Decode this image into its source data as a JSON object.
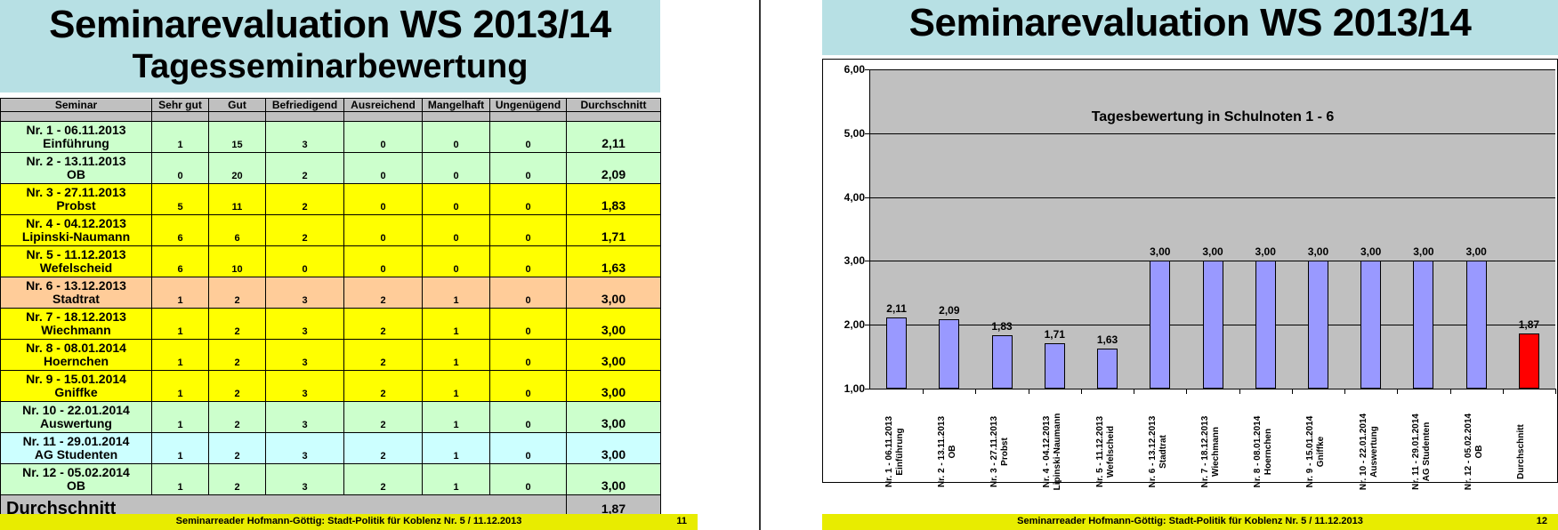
{
  "left_slide": {
    "title": "Seminarevaluation WS 2013/14",
    "subtitle": "Tagesseminarbewertung",
    "table": {
      "columns": [
        "Seminar",
        "Sehr gut",
        "Gut",
        "Befriedigend",
        "Ausreichend",
        "Mangelhaft",
        "Ungenügend",
        "Durchschnitt"
      ],
      "rows": [
        {
          "line1": "Nr. 1 - 06.11.2013",
          "line2": "Einführung",
          "sehr_gut": "1",
          "gut": "15",
          "befriedigend": "3",
          "ausreichend": "0",
          "mangelhaft": "0",
          "ungenuegend": "0",
          "durchschnitt": "2,11",
          "color": "#ccffcc"
        },
        {
          "line1": "Nr. 2 - 13.11.2013",
          "line2": "OB",
          "sehr_gut": "0",
          "gut": "20",
          "befriedigend": "2",
          "ausreichend": "0",
          "mangelhaft": "0",
          "ungenuegend": "0",
          "durchschnitt": "2,09",
          "color": "#ccffcc"
        },
        {
          "line1": "Nr. 3 - 27.11.2013",
          "line2": "Probst",
          "sehr_gut": "5",
          "gut": "11",
          "befriedigend": "2",
          "ausreichend": "0",
          "mangelhaft": "0",
          "ungenuegend": "0",
          "durchschnitt": "1,83",
          "color": "#ffff00"
        },
        {
          "line1": "Nr. 4 - 04.12.2013",
          "line2": "Lipinski-Naumann",
          "sehr_gut": "6",
          "gut": "6",
          "befriedigend": "2",
          "ausreichend": "0",
          "mangelhaft": "0",
          "ungenuegend": "0",
          "durchschnitt": "1,71",
          "color": "#ffff00"
        },
        {
          "line1": "Nr. 5 - 11.12.2013",
          "line2": "Wefelscheid",
          "sehr_gut": "6",
          "gut": "10",
          "befriedigend": "0",
          "ausreichend": "0",
          "mangelhaft": "0",
          "ungenuegend": "0",
          "durchschnitt": "1,63",
          "color": "#ffff00"
        },
        {
          "line1": "Nr. 6 - 13.12.2013",
          "line2": "Stadtrat",
          "sehr_gut": "1",
          "gut": "2",
          "befriedigend": "3",
          "ausreichend": "2",
          "mangelhaft": "1",
          "ungenuegend": "0",
          "durchschnitt": "3,00",
          "color": "#ffcc99"
        },
        {
          "line1": "Nr. 7 - 18.12.2013",
          "line2": "Wiechmann",
          "sehr_gut": "1",
          "gut": "2",
          "befriedigend": "3",
          "ausreichend": "2",
          "mangelhaft": "1",
          "ungenuegend": "0",
          "durchschnitt": "3,00",
          "color": "#ffff00"
        },
        {
          "line1": "Nr. 8 - 08.01.2014",
          "line2": "Hoernchen",
          "sehr_gut": "1",
          "gut": "2",
          "befriedigend": "3",
          "ausreichend": "2",
          "mangelhaft": "1",
          "ungenuegend": "0",
          "durchschnitt": "3,00",
          "color": "#ffff00"
        },
        {
          "line1": "Nr. 9 - 15.01.2014",
          "line2": "Gniffke",
          "sehr_gut": "1",
          "gut": "2",
          "befriedigend": "3",
          "ausreichend": "2",
          "mangelhaft": "1",
          "ungenuegend": "0",
          "durchschnitt": "3,00",
          "color": "#ffff00"
        },
        {
          "line1": "Nr. 10 - 22.01.2014",
          "line2": "Auswertung",
          "sehr_gut": "1",
          "gut": "2",
          "befriedigend": "3",
          "ausreichend": "2",
          "mangelhaft": "1",
          "ungenuegend": "0",
          "durchschnitt": "3,00",
          "color": "#ccffcc"
        },
        {
          "line1": "Nr. 11 - 29.01.2014",
          "line2": "AG Studenten",
          "sehr_gut": "1",
          "gut": "2",
          "befriedigend": "3",
          "ausreichend": "2",
          "mangelhaft": "1",
          "ungenuegend": "0",
          "durchschnitt": "3,00",
          "color": "#ccffff"
        },
        {
          "line1": "Nr. 12 - 05.02.2014",
          "line2": "OB",
          "sehr_gut": "1",
          "gut": "2",
          "befriedigend": "3",
          "ausreichend": "2",
          "mangelhaft": "1",
          "ungenuegend": "0",
          "durchschnitt": "3,00",
          "color": "#ccffcc"
        }
      ],
      "total_label": "Durchschnitt",
      "total_value": "1,87"
    },
    "footer": {
      "text": "Seminarreader Hofmann-Göttig: Stadt-Politik für Koblenz Nr. 5 / 11.12.2013",
      "page": "11"
    }
  },
  "right_slide": {
    "title": "Seminarevaluation WS 2013/14",
    "footer": {
      "text": "Seminarreader Hofmann-Göttig: Stadt-Politik für Koblenz Nr. 5 / 11.12.2013",
      "page": "12"
    }
  },
  "chart_data": {
    "type": "bar",
    "title": "Tagesbewertung in Schulnoten 1 - 6",
    "xlabel": "",
    "ylabel": "",
    "ylim": [
      1,
      6
    ],
    "yticks": [
      "1,00",
      "2,00",
      "3,00",
      "4,00",
      "5,00",
      "6,00"
    ],
    "grid": true,
    "legend": "none",
    "categories": [
      [
        "Nr. 1 - 06.11.2013",
        "Einführung"
      ],
      [
        "Nr. 2 - 13.11.2013",
        "OB"
      ],
      [
        "Nr. 3 - 27.11.2013",
        "Probst"
      ],
      [
        "Nr. 4 - 04.12.2013",
        "Lipinski-Naumann"
      ],
      [
        "Nr. 5 - 11.12.2013",
        "Wefelscheid"
      ],
      [
        "Nr. 6 - 13.12.2013",
        "Stadtrat"
      ],
      [
        "Nr. 7 - 18.12.2013",
        "Wiechmann"
      ],
      [
        "Nr. 8 - 08.01.2014",
        "Hoernchen"
      ],
      [
        "Nr. 9 - 15.01.2014",
        "Gniffke"
      ],
      [
        "Nr. 10 - 22.01.2014",
        "Auswertung"
      ],
      [
        "Nr. 11 - 29.01.2014",
        "AG Studenten"
      ],
      [
        "Nr. 12 - 05.02.2014",
        "OB"
      ],
      [
        "Durchschnitt",
        ""
      ]
    ],
    "values": [
      2.11,
      2.09,
      1.83,
      1.71,
      1.63,
      3.0,
      3.0,
      3.0,
      3.0,
      3.0,
      3.0,
      3.0,
      1.87
    ],
    "value_labels": [
      "2,11",
      "2,09",
      "1,83",
      "1,71",
      "1,63",
      "3,00",
      "3,00",
      "3,00",
      "3,00",
      "3,00",
      "3,00",
      "3,00",
      "1,87"
    ],
    "colors": [
      "#9999ff",
      "#9999ff",
      "#9999ff",
      "#9999ff",
      "#9999ff",
      "#9999ff",
      "#9999ff",
      "#9999ff",
      "#9999ff",
      "#9999ff",
      "#9999ff",
      "#9999ff",
      "#ff0000"
    ]
  }
}
